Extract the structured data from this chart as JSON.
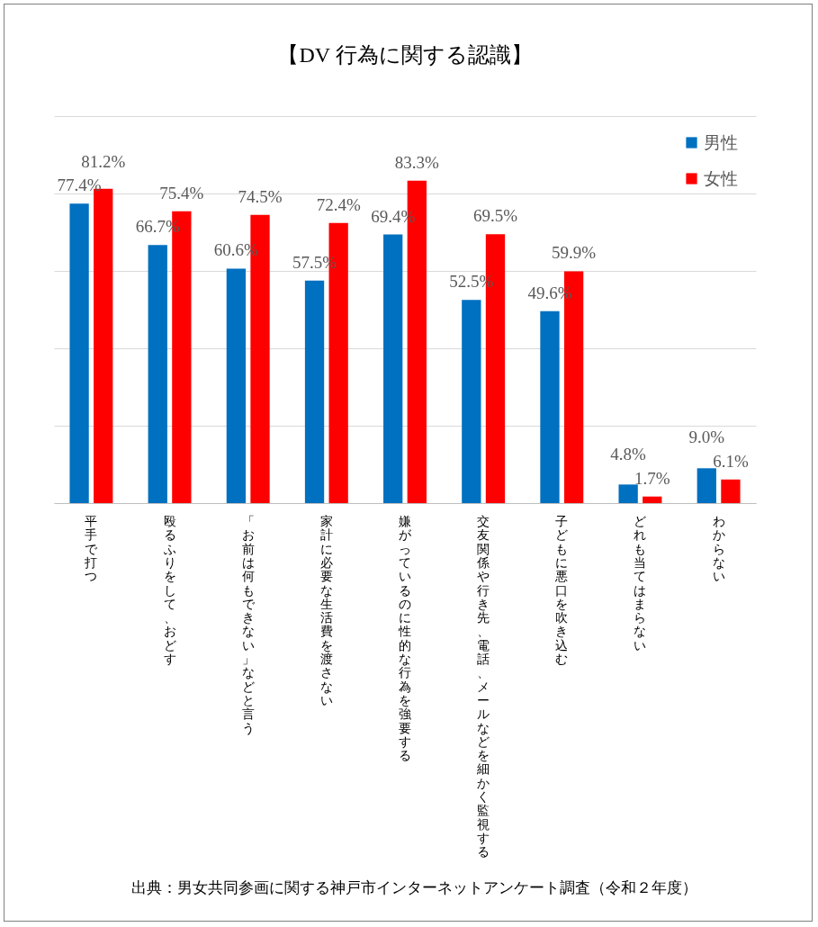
{
  "chart_data": {
    "type": "bar",
    "title": "【DV 行為に関する認識】",
    "categories": [
      "平手で打つ",
      "殴るふりをして、おどす",
      "「お前は何もできない」などと言う",
      "家計に必要な生活費を渡さない",
      "嫌がっているのに性的な行為を強要する",
      "交友関係や行き先、電話、メールなどを細かく監視する",
      "子どもに悪口を吹き込む",
      "どれも当てはまらない",
      "わからない"
    ],
    "series": [
      {
        "name": "男性",
        "color": "#0070c0",
        "values": [
          77.4,
          66.7,
          60.6,
          57.5,
          69.4,
          52.5,
          49.6,
          4.8,
          9.0
        ],
        "value_labels": [
          "77.4%",
          "66.7%",
          "60.6%",
          "57.5%",
          "69.4%",
          "52.5%",
          "49.6%",
          "4.8%",
          "9.0%"
        ]
      },
      {
        "name": "女性",
        "color": "#ff0000",
        "values": [
          81.2,
          75.4,
          74.5,
          72.4,
          83.3,
          69.5,
          59.9,
          1.7,
          6.1
        ],
        "value_labels": [
          "81.2%",
          "75.4%",
          "74.5%",
          "72.4%",
          "83.3%",
          "69.5%",
          "59.9%",
          "1.7%",
          "6.1%"
        ]
      }
    ],
    "ylim": [
      0,
      100
    ],
    "yticks": [
      {
        "value": 0,
        "label": null
      },
      {
        "value": 20,
        "label": null
      },
      {
        "value": 40,
        "label": null
      },
      {
        "value": 60,
        "label": null
      },
      {
        "value": 80,
        "label": null
      },
      {
        "value": 100,
        "label": null
      }
    ],
    "tick_labels": "x",
    "grid": "y",
    "legend": "top right",
    "annotations": [
      "出典：男女共同参画に関する神戸市インターネットアンケート調査（令和２年度）"
    ]
  }
}
